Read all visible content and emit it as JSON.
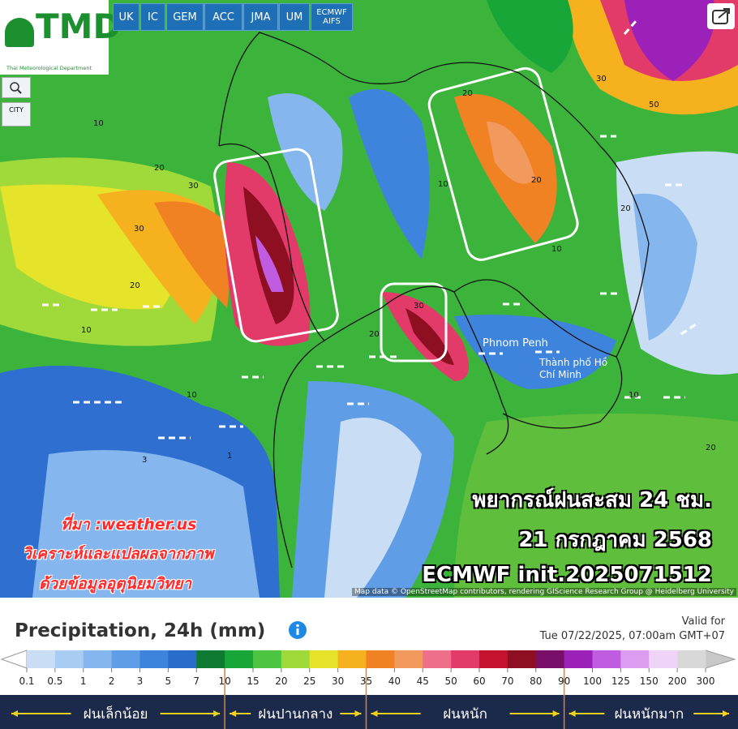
{
  "header": {
    "logo": "TMD",
    "logo_caption": "Thai Meteorological Department",
    "models": [
      "UK",
      "IC",
      "GEM",
      "ACC",
      "JMA",
      "UM",
      "ECMWF AIFS"
    ]
  },
  "map": {
    "controls": [
      "CITY"
    ],
    "places": [
      "Phnom Penh",
      "Thành phố Hồ Chí Minh"
    ],
    "contour_labels": [
      "30",
      "10",
      "20",
      "30",
      "20",
      "10",
      "10",
      "20",
      "30",
      "20",
      "10",
      "20",
      "10",
      "3",
      "1",
      "20",
      "10",
      "30",
      "50",
      "20"
    ]
  },
  "overlay": {
    "headline": [
      "พยากรณ์ฝนสะสม 24 ชม.",
      "21 กรกฎาคม 2568",
      "ECMWF init.2025071512"
    ],
    "source": [
      "ที่มา :weather.us",
      "วิเคราะห์และแปลผลจากภาพ",
      "ด้วยข้อมูลอุตุนิยมวิทยา"
    ]
  },
  "credit": "Map data © OpenStreetMap contributors, rendering GIScience Research Group @ Heidelberg University",
  "legend": {
    "title": "Precipitation, 24h (mm)",
    "valid_label": "Valid for",
    "valid_time": "Tue 07/22/2025, 07:00am GMT+07",
    "scale": {
      "labels": [
        "0.1",
        "0.5",
        "1",
        "2",
        "3",
        "5",
        "7",
        "10",
        "15",
        "20",
        "25",
        "30",
        "35",
        "40",
        "45",
        "50",
        "60",
        "70",
        "80",
        "90",
        "100",
        "125",
        "150",
        "200",
        "300"
      ],
      "colors": [
        "#c9def5",
        "#a9ccf2",
        "#86b6ee",
        "#5f9de6",
        "#3f84dc",
        "#2a6cc9",
        "#0f7a32",
        "#17a637",
        "#4cc540",
        "#9fd93a",
        "#e6e32b",
        "#f6b21e",
        "#f08224",
        "#f29a5e",
        "#ee6f8a",
        "#e23b6a",
        "#c4122f",
        "#8e0e22",
        "#7a0f6a",
        "#9c21b8",
        "#c05ce0",
        "#dc9cf0",
        "#f0d4f8",
        "#d8d8d8"
      ]
    },
    "bands": [
      "ฝนเล็กน้อย",
      "ฝนปานกลาง",
      "ฝนหนัก",
      "ฝนหนักมาก"
    ]
  }
}
